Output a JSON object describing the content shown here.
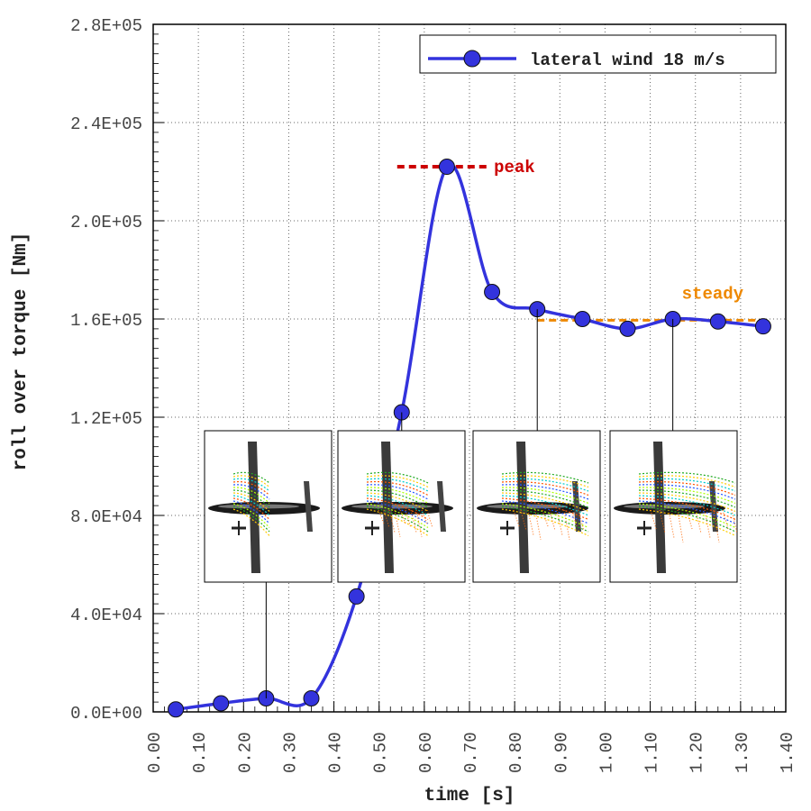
{
  "chart_data": {
    "type": "line",
    "xlabel": "time [s]",
    "ylabel": "roll over torque [Nm]",
    "xlim": [
      0,
      1.4
    ],
    "ylim": [
      0,
      280000
    ],
    "x_ticks": [
      "0.00",
      "0.10",
      "0.20",
      "0.30",
      "0.40",
      "0.50",
      "0.60",
      "0.70",
      "0.80",
      "0.90",
      "1.00",
      "1.10",
      "1.20",
      "1.30",
      "1.40"
    ],
    "y_ticks": [
      "0.0E+00",
      "4.0E+04",
      "8.0E+04",
      "1.2E+05",
      "1.6E+05",
      "2.0E+05",
      "2.4E+05",
      "2.8E+05"
    ],
    "grid": true,
    "legend_position": "top-right",
    "series": [
      {
        "name": "lateral wind 18 m/s",
        "color": "#3333dd",
        "marker": "circle",
        "x": [
          0.05,
          0.15,
          0.25,
          0.35,
          0.45,
          0.55,
          0.65,
          0.75,
          0.85,
          0.95,
          1.05,
          1.15,
          1.25,
          1.35
        ],
        "y": [
          1000,
          3500,
          5500,
          5500,
          47000,
          122000,
          222000,
          171000,
          164000,
          160000,
          156000,
          160000,
          159000,
          157000
        ]
      }
    ],
    "annotations": {
      "peak": {
        "label": "peak",
        "y": 222000,
        "x_range": [
          0.55,
          0.75
        ],
        "color": "#cc0000"
      },
      "steady": {
        "label": "steady",
        "y": 159500,
        "x_range": [
          0.85,
          1.35
        ],
        "color": "#ee8800"
      }
    },
    "inset_images": [
      {
        "x_link": 0.25,
        "y_link": 5500,
        "description_icon": "airplane-flow-icon"
      },
      {
        "x_link": 0.55,
        "y_link": 122000,
        "description_icon": "airplane-flow-icon"
      },
      {
        "x_link": 0.85,
        "y_link": 164000,
        "description_icon": "airplane-flow-icon"
      },
      {
        "x_link": 1.15,
        "y_link": 160000,
        "description_icon": "airplane-flow-icon"
      }
    ]
  }
}
